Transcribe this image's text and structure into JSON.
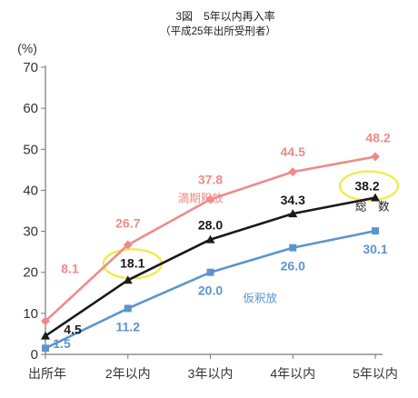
{
  "chart_data": {
    "type": "line",
    "title": "3図　5年以内再入率",
    "subtitle": "（平成25年出所受刑者）",
    "ylabel": "(%)",
    "ylim": [
      0,
      70
    ],
    "yticks": [
      0,
      10,
      20,
      30,
      40,
      50,
      60,
      70
    ],
    "categories": [
      "出所年",
      "2年以内",
      "3年以内",
      "4年以内",
      "5年以内"
    ],
    "series": [
      {
        "name": "満期釈放",
        "color": "#ef8a8a",
        "marker": "diamond",
        "values": [
          8.1,
          26.7,
          37.8,
          44.5,
          48.2
        ],
        "labels": [
          "8.1",
          "26.7",
          "37.8",
          "44.5",
          "48.2"
        ]
      },
      {
        "name": "総　数",
        "color": "#1a1a1a",
        "marker": "triangle",
        "values": [
          4.5,
          18.1,
          28.0,
          34.3,
          38.2
        ],
        "labels": [
          "4.5",
          "18.1",
          "28.0",
          "34.3",
          "38.2"
        ]
      },
      {
        "name": "仮釈放",
        "color": "#5b95cf",
        "marker": "square",
        "values": [
          1.5,
          11.2,
          20.0,
          26.0,
          30.1
        ],
        "labels": [
          "1.5",
          "11.2",
          "20.0",
          "26.0",
          "30.1"
        ]
      }
    ],
    "highlights": [
      {
        "series": 1,
        "index": 1,
        "color": "#f2ea3a"
      },
      {
        "series": 1,
        "index": 4,
        "color": "#f2ea3a"
      }
    ],
    "grid": false
  }
}
